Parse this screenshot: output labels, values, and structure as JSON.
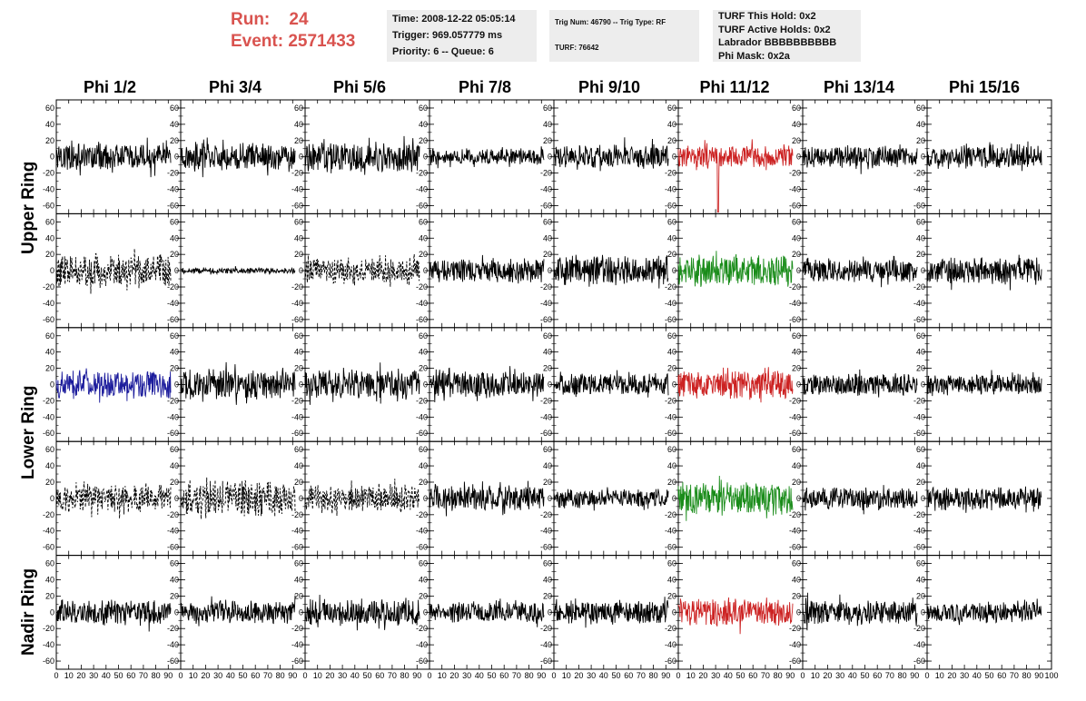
{
  "header": {
    "run_label": "Run:",
    "run_value": "24",
    "event_label": "Event:",
    "event_value": "2571433",
    "time_line": "Time: 2008-12-22 05:05:14",
    "trigger_line": "Trigger: 969.057779 ms",
    "priority_line": "Priority: 6 -- Queue: 6",
    "trig_line": "Trig Num: 46790 -- Trig Type: RF",
    "turf_line": "TURF: 76642",
    "turf_this_hold": "TURF This Hold: 0x2",
    "turf_active_holds": "TURF Active Holds: 0x2",
    "labrador": "Labrador BBBBBBBBBB",
    "phi_mask": "Phi Mask: 0x2a"
  },
  "columns": [
    "Phi 1/2",
    "Phi 3/4",
    "Phi 5/6",
    "Phi 7/8",
    "Phi 9/10",
    "Phi 11/12",
    "Phi 13/14",
    "Phi 15/16"
  ],
  "row_labels": [
    "Upper Ring",
    "Lower Ring",
    "Nadir Ring"
  ],
  "colors": {
    "black": "#000000",
    "red": "#cc2222",
    "green": "#1a8c1a",
    "blue": "#1c1c9c"
  },
  "chart_data": {
    "type": "line",
    "title": "",
    "xlabel": "",
    "ylabel": "",
    "xlim": [
      0,
      100
    ],
    "ylim": [
      -70,
      70
    ],
    "x_ticks": [
      0,
      10,
      20,
      30,
      40,
      50,
      60,
      70,
      80,
      90,
      100
    ],
    "y_ticks": [
      -60,
      -40,
      -20,
      0,
      20,
      40,
      60
    ],
    "grid": false,
    "panel_rows": 5,
    "panel_cols": 8,
    "samples_per_trace": 260,
    "trace_x_range": [
      0,
      92
    ],
    "panels": [
      [
        {
          "color": "black",
          "style": "solid",
          "amp": 14
        },
        {
          "color": "black",
          "style": "solid",
          "amp": 14
        },
        {
          "color": "black",
          "style": "solid",
          "amp": 16
        },
        {
          "color": "black",
          "style": "solid",
          "amp": 9
        },
        {
          "color": "black",
          "style": "solid",
          "amp": 13
        },
        {
          "color": "red",
          "style": "solid",
          "amp": 12,
          "spike": [
            32,
            -68
          ]
        },
        {
          "color": "black",
          "style": "solid",
          "amp": 12
        },
        {
          "color": "black",
          "style": "solid",
          "amp": 12
        }
      ],
      [
        {
          "color": "black",
          "style": "dashed",
          "amp": 18
        },
        {
          "color": "black",
          "style": "solid",
          "amp": 3
        },
        {
          "color": "black",
          "style": "dashed",
          "amp": 14
        },
        {
          "color": "black",
          "style": "solid",
          "amp": 13
        },
        {
          "color": "black",
          "style": "solid",
          "amp": 15
        },
        {
          "color": "green",
          "style": "solid",
          "amp": 16
        },
        {
          "color": "black",
          "style": "solid",
          "amp": 12
        },
        {
          "color": "black",
          "style": "solid",
          "amp": 14
        }
      ],
      [
        {
          "color": "blue",
          "style": "solid",
          "amp": 15
        },
        {
          "color": "black",
          "style": "solid",
          "amp": 16
        },
        {
          "color": "black",
          "style": "solid",
          "amp": 16
        },
        {
          "color": "black",
          "style": "solid",
          "amp": 14
        },
        {
          "color": "black",
          "style": "solid",
          "amp": 12
        },
        {
          "color": "red",
          "style": "solid",
          "amp": 16
        },
        {
          "color": "black",
          "style": "solid",
          "amp": 12
        },
        {
          "color": "black",
          "style": "solid",
          "amp": 11
        }
      ],
      [
        {
          "color": "black",
          "style": "dashed",
          "amp": 14
        },
        {
          "color": "black",
          "style": "dashed",
          "amp": 20
        },
        {
          "color": "black",
          "style": "dashed",
          "amp": 14
        },
        {
          "color": "black",
          "style": "solid",
          "amp": 13
        },
        {
          "color": "black",
          "style": "solid",
          "amp": 10
        },
        {
          "color": "green",
          "style": "solid",
          "amp": 17
        },
        {
          "color": "black",
          "style": "solid",
          "amp": 11
        },
        {
          "color": "black",
          "style": "solid",
          "amp": 12
        }
      ],
      [
        {
          "color": "black",
          "style": "solid",
          "amp": 14
        },
        {
          "color": "black",
          "style": "solid",
          "amp": 12
        },
        {
          "color": "black",
          "style": "solid",
          "amp": 14
        },
        {
          "color": "black",
          "style": "solid",
          "amp": 11
        },
        {
          "color": "black",
          "style": "solid",
          "amp": 12
        },
        {
          "color": "red",
          "style": "solid",
          "amp": 15
        },
        {
          "color": "black",
          "style": "solid",
          "amp": 13
        },
        {
          "color": "black",
          "style": "solid",
          "amp": 11
        }
      ]
    ]
  }
}
